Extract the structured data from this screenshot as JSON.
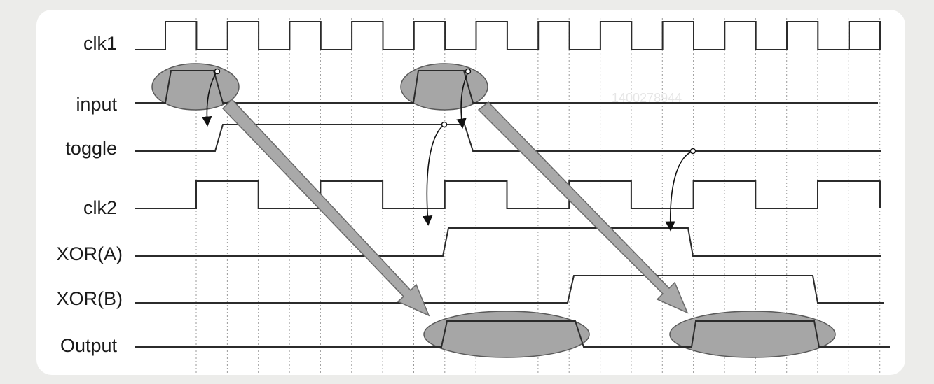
{
  "diagram": {
    "signals": [
      {
        "id": "clk1",
        "label": "clk1"
      },
      {
        "id": "input",
        "label": "input"
      },
      {
        "id": "toggle",
        "label": "toggle"
      },
      {
        "id": "clk2",
        "label": "clk2"
      },
      {
        "id": "xor-a",
        "label": "XOR(A)"
      },
      {
        "id": "xor-b",
        "label": "XOR(B)"
      },
      {
        "id": "output",
        "label": "Output"
      }
    ],
    "watermark": "1400278944",
    "colors": {
      "card": "#ffffff",
      "background": "#ececea",
      "waveform": "#2b2b2b",
      "gridline": "#9a9a9a",
      "highlight_fill": "#a6a6a6",
      "highlight_stroke": "#5a5a5a",
      "arrow_fill": "#a9a9a9",
      "arrow_stroke": "#6a6a6a"
    }
  }
}
